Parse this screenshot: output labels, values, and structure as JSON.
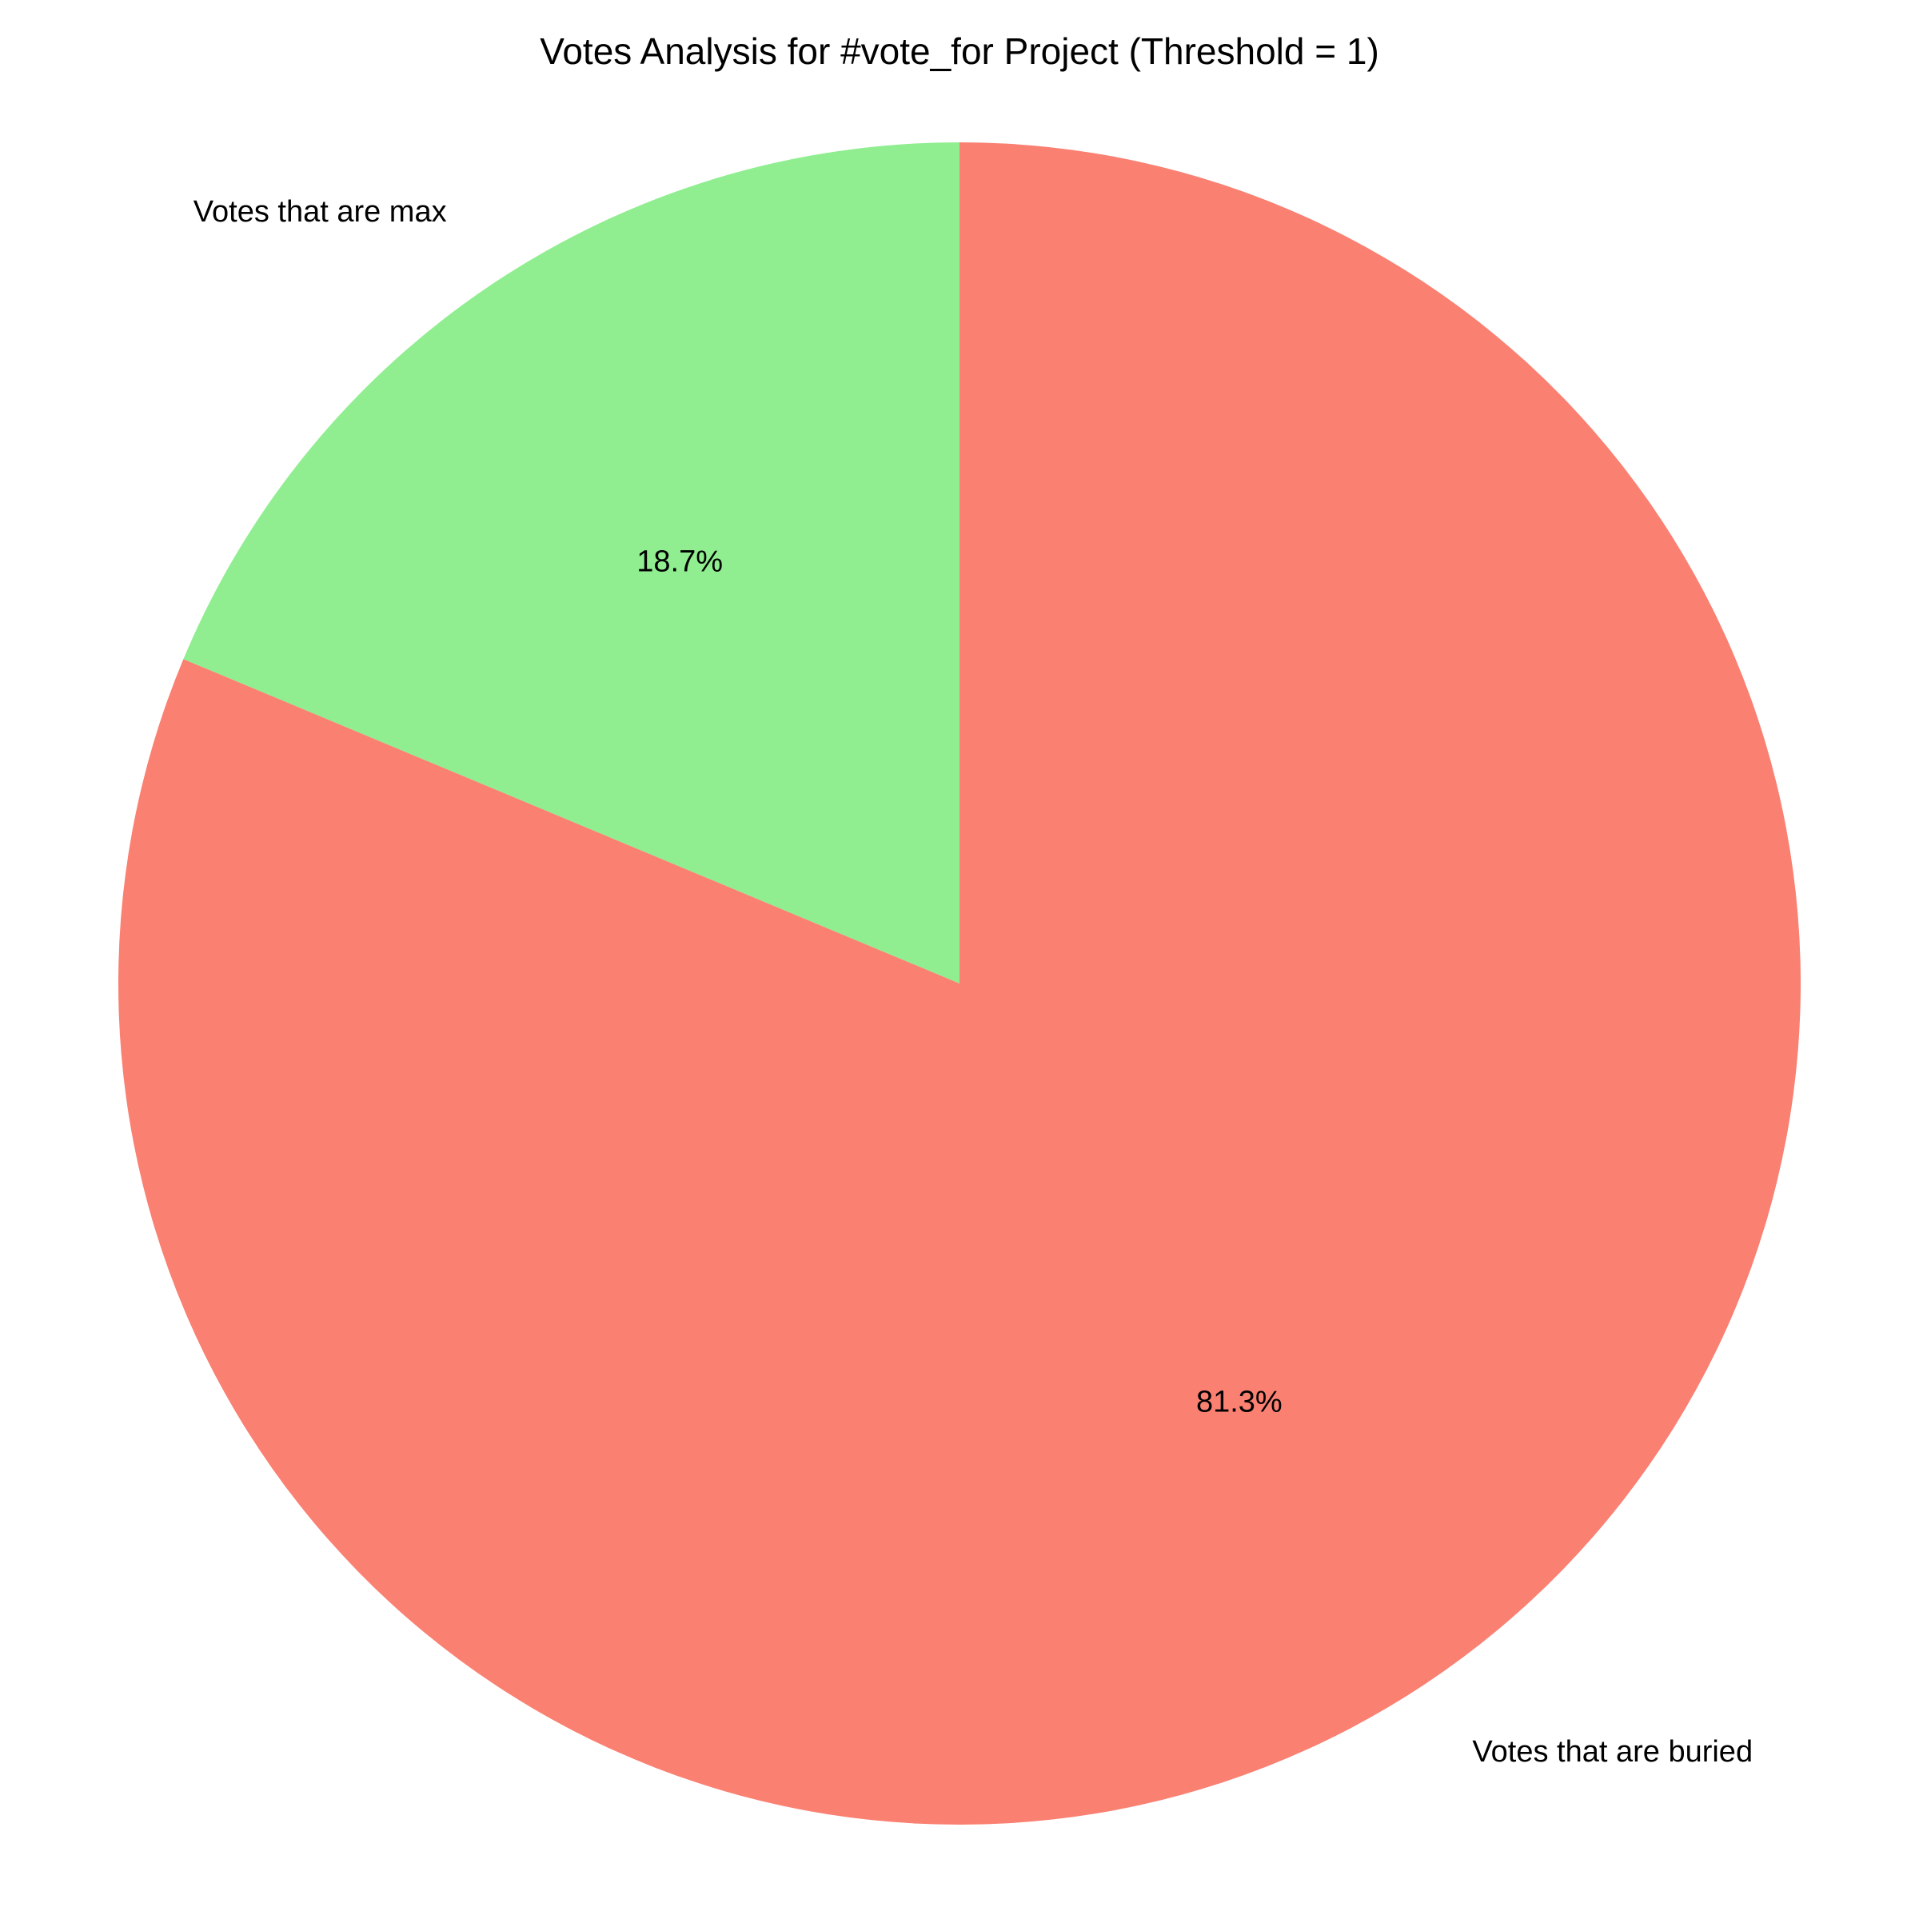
{
  "chart_data": {
    "type": "pie",
    "title": "Votes Analysis for #vote_for Project (Threshold = 1)",
    "slices": [
      {
        "label": "Votes that are max",
        "value": 18.7,
        "pct_label": "18.7%",
        "color": "#90ee90"
      },
      {
        "label": "Votes that are buried",
        "value": 81.3,
        "pct_label": "81.3%",
        "color": "#fa8072"
      }
    ],
    "start_angle": "90 degrees (top)",
    "direction": "counterclockwise",
    "legend": "none"
  }
}
